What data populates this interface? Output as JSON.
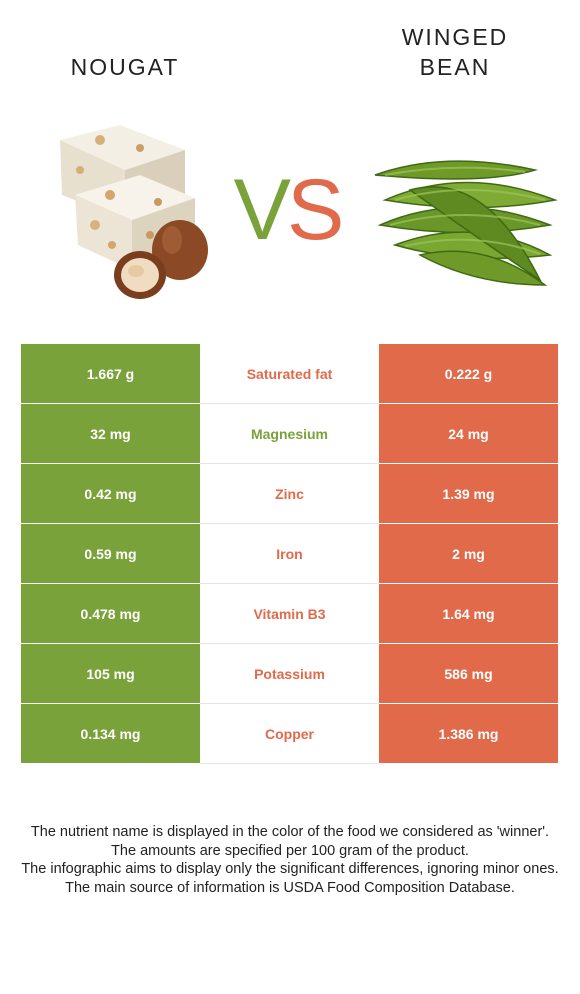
{
  "header": {
    "left_food": "NOUGAT",
    "right_food_line1": "WINGED",
    "right_food_line2": "BEAN",
    "vs_v": "V",
    "vs_s": "S"
  },
  "colors": {
    "winner_left": "#7aa23a",
    "winner_right": "#e06a4a"
  },
  "rows": [
    {
      "left": "1.667 g",
      "nutrient": "Saturated fat",
      "right": "0.222 g",
      "winner": "right"
    },
    {
      "left": "32 mg",
      "nutrient": "Magnesium",
      "right": "24 mg",
      "winner": "left"
    },
    {
      "left": "0.42 mg",
      "nutrient": "Zinc",
      "right": "1.39 mg",
      "winner": "right"
    },
    {
      "left": "0.59 mg",
      "nutrient": "Iron",
      "right": "2 mg",
      "winner": "right"
    },
    {
      "left": "0.478 mg",
      "nutrient": "Vitamin B3",
      "right": "1.64 mg",
      "winner": "right"
    },
    {
      "left": "105 mg",
      "nutrient": "Potassium",
      "right": "586 mg",
      "winner": "right"
    },
    {
      "left": "0.134 mg",
      "nutrient": "Copper",
      "right": "1.386 mg",
      "winner": "right"
    }
  ],
  "footer": {
    "line1": "The nutrient name is displayed in the color of the food we considered as 'winner'.",
    "line2": "The amounts are specified per 100 gram of the product.",
    "line3": "The infographic aims to display only the significant differences, ignoring minor ones.",
    "line4": "The main source of information is USDA Food Composition Database."
  }
}
